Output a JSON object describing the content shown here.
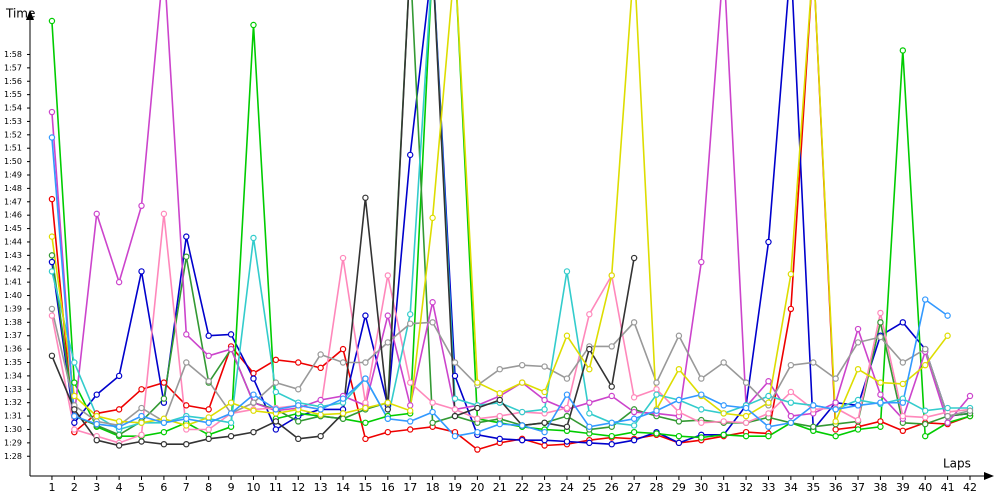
{
  "chart_data": {
    "type": "line",
    "y_label": "Time",
    "x_label": "Laps",
    "xlim": [
      0.02,
      42.67
    ],
    "xticks": [
      1,
      2,
      3,
      4,
      5,
      6,
      7,
      8,
      9,
      10,
      11,
      12,
      13,
      14,
      15,
      16,
      17,
      18,
      19,
      20,
      21,
      22,
      23,
      24,
      25,
      26,
      27,
      28,
      29,
      30,
      31,
      32,
      33,
      34,
      35,
      36,
      37,
      38,
      39,
      40,
      41,
      42
    ],
    "ylim": [
      86.6,
      120.2
    ],
    "yticks": [
      {
        "value": 88,
        "label": "1:28"
      },
      {
        "value": 89,
        "label": "1:29"
      },
      {
        "value": 90,
        "label": "1:30"
      },
      {
        "value": 91,
        "label": "1:31"
      },
      {
        "value": 92,
        "label": "1:32"
      },
      {
        "value": 93,
        "label": "1:33"
      },
      {
        "value": 94,
        "label": "1:34"
      },
      {
        "value": 95,
        "label": "1:35"
      },
      {
        "value": 96,
        "label": "1:36"
      },
      {
        "value": 97,
        "label": "1:37"
      },
      {
        "value": 98,
        "label": "1:38"
      },
      {
        "value": 99,
        "label": "1:39"
      },
      {
        "value": 100,
        "label": "1:40"
      },
      {
        "value": 101,
        "label": "1:41"
      },
      {
        "value": 102,
        "label": "1:42"
      },
      {
        "value": 103,
        "label": "1:43"
      },
      {
        "value": 104,
        "label": "1:44"
      },
      {
        "value": 105,
        "label": "1:45"
      },
      {
        "value": 106,
        "label": "1:46"
      },
      {
        "value": 107,
        "label": "1:47"
      },
      {
        "value": 108,
        "label": "1:48"
      },
      {
        "value": 109,
        "label": "1:49"
      },
      {
        "value": 110,
        "label": "1:50"
      },
      {
        "value": 111,
        "label": "1:51"
      },
      {
        "value": 112,
        "label": "1:52"
      },
      {
        "value": 113,
        "label": "1:53"
      },
      {
        "value": 114,
        "label": "1:54"
      },
      {
        "value": 115,
        "label": "1:55"
      },
      {
        "value": 116,
        "label": "1:56"
      },
      {
        "value": 117,
        "label": "1:57"
      },
      {
        "value": 118,
        "label": "1:58"
      }
    ],
    "grid": false,
    "series": [
      {
        "color": "#ee0000",
        "values": [
          107.2,
          89.8,
          91.2,
          91.5,
          93,
          93.5,
          91.8,
          91.5,
          96.2,
          94.2,
          95.2,
          95,
          94.6,
          96,
          89.3,
          89.8,
          90,
          90.2,
          89.8,
          88.5,
          89,
          89.3,
          88.8,
          88.9,
          89.2,
          89.4,
          89.3,
          89.6,
          89,
          89.2,
          89.5,
          89.8,
          89.7,
          99,
          125,
          90,
          90.2,
          90.6,
          89.9,
          90.5,
          90.4,
          91
        ]
      },
      {
        "color": "#0000cc",
        "values": [
          102.5,
          90.5,
          92.6,
          94,
          101.8,
          92,
          104.4,
          97,
          97.1,
          93.8,
          90,
          91,
          91.5,
          91.5,
          98.5,
          91.8,
          110.5,
          125,
          94,
          89.6,
          89.3,
          89.2,
          89.2,
          89.1,
          89,
          88.9,
          89.2,
          89.8,
          89,
          89.6,
          89.6,
          91.8,
          104,
          125,
          90,
          92,
          91.8,
          97,
          98,
          96,
          91,
          91.2
        ]
      },
      {
        "color": "#00cc00",
        "values": [
          120.5,
          93.5,
          90.2,
          89.5,
          89.5,
          89.8,
          90.5,
          89.6,
          90.2,
          120.2,
          90.8,
          91.2,
          91,
          90.8,
          90.5,
          91,
          91.2,
          125,
          125,
          90.8,
          90.5,
          90.2,
          90,
          89.9,
          89.7,
          89.5,
          89.8,
          89.7,
          89.5,
          89.4,
          89.6,
          89.5,
          89.5,
          90.5,
          89.9,
          89.5,
          90,
          90.2,
          118.3,
          89.5,
          90.5,
          91
        ]
      },
      {
        "color": "#339933",
        "values": [
          103,
          91,
          90.3,
          89.6,
          90.6,
          92.3,
          102.9,
          93.5,
          96,
          92,
          91.5,
          90.6,
          91,
          90.8,
          91.5,
          92,
          125,
          90.5,
          91,
          90.5,
          90.8,
          90.3,
          90.5,
          91,
          90,
          90.2,
          91.5,
          91,
          90.6,
          90.7,
          90.5,
          90.5,
          90.9,
          90.5,
          90.2,
          90.4,
          90.6,
          98,
          90.5,
          90.4,
          91,
          91.2
        ]
      },
      {
        "color": "#cc44cc",
        "values": [
          113.7,
          91,
          106.1,
          101,
          106.7,
          125,
          97.1,
          95.5,
          96,
          92,
          91.4,
          91.6,
          92.2,
          92.5,
          91.8,
          98.5,
          91.8,
          99.5,
          91.5,
          91.8,
          92.5,
          93.5,
          92.2,
          91.5,
          92,
          92.5,
          91.3,
          91.2,
          91,
          102.5,
          125,
          91.7,
          93.6,
          91,
          91.2,
          92,
          97.5,
          92.6,
          90.8,
          95.8,
          90.5,
          92.5
        ]
      },
      {
        "color": "#ff88bb",
        "values": [
          98.5,
          90,
          89.5,
          89,
          89.6,
          106.1,
          90,
          90,
          91.2,
          91.5,
          91.6,
          91.8,
          91.5,
          102.8,
          92,
          101.5,
          93.5,
          92,
          91.5,
          90.8,
          91,
          91.3,
          91.2,
          91.6,
          98.6,
          101.5,
          92.4,
          93,
          91.3,
          90.5,
          90.6,
          90.5,
          91.2,
          92.8,
          91.5,
          91.6,
          90.7,
          98.7,
          91,
          90.9,
          91.3,
          91.5
        ]
      },
      {
        "color": "#33cccc",
        "values": [
          101.8,
          95,
          91,
          90,
          90.5,
          90.5,
          91,
          90.8,
          90.5,
          104.3,
          92.8,
          92,
          91.7,
          92,
          93.8,
          90.8,
          98.6,
          125,
          92.3,
          91.8,
          92,
          91.3,
          91.5,
          101.8,
          91.2,
          90.5,
          90.3,
          92.6,
          92.2,
          91.5,
          91.2,
          91.8,
          92.5,
          92,
          91.8,
          91.5,
          92.2,
          91.9,
          92.3,
          91.4,
          91.6,
          91.6
        ]
      },
      {
        "color": "#999999",
        "values": [
          99,
          91.8,
          90.6,
          90.3,
          91.6,
          90.6,
          95,
          93.6,
          91.2,
          92,
          93.5,
          93,
          95.6,
          95,
          95,
          96.5,
          97.9,
          98,
          95,
          93.3,
          94.5,
          94.8,
          94.7,
          93.8,
          96.2,
          96.2,
          98,
          93.5,
          97,
          93.8,
          95,
          93.5,
          91.8,
          94.8,
          95,
          93.8,
          96.5,
          96.9,
          95,
          96,
          91,
          91.4
        ]
      },
      {
        "color": "#333333",
        "values": [
          95.5,
          91.5,
          89.2,
          88.8,
          89.1,
          88.9,
          88.9,
          89.3,
          89.5,
          89.8,
          90.6,
          89.3,
          89.5,
          91.2,
          107.3,
          91.5,
          125,
          125,
          91,
          91.6,
          92.2,
          90.3,
          90.5,
          90.2,
          96,
          93.2,
          102.8,
          null,
          null,
          null,
          null,
          null,
          null,
          null,
          null,
          null,
          null,
          null,
          null,
          null,
          null,
          null
        ]
      },
      {
        "color": "#dddd00",
        "values": [
          104.4,
          92.5,
          91,
          90.6,
          90.5,
          90.8,
          90.3,
          90.9,
          92,
          91.4,
          91.2,
          91.5,
          91.1,
          91.2,
          91.6,
          92,
          91.4,
          105.8,
          125,
          93.5,
          92.7,
          93.5,
          92.8,
          97,
          94.5,
          101.5,
          125,
          91.5,
          94.5,
          92.5,
          91.2,
          91,
          92,
          101.6,
          125,
          90.6,
          94.5,
          93.5,
          93.4,
          94.8,
          97,
          null
        ]
      },
      {
        "color": "#3399ff",
        "values": [
          111.8,
          91,
          90.4,
          90.2,
          91,
          90.5,
          90.8,
          90.5,
          91.2,
          92.6,
          91.5,
          91.8,
          91.5,
          92.3,
          93.8,
          90.8,
          90.6,
          91.3,
          89.5,
          89.8,
          90.4,
          90.3,
          89.8,
          92.6,
          90.2,
          90.5,
          90.8,
          91.4,
          92.2,
          92.6,
          91.8,
          91.6,
          90.2,
          90.5,
          91.8,
          91.5,
          91.8,
          92,
          92,
          99.7,
          98.5,
          null
        ]
      }
    ]
  }
}
